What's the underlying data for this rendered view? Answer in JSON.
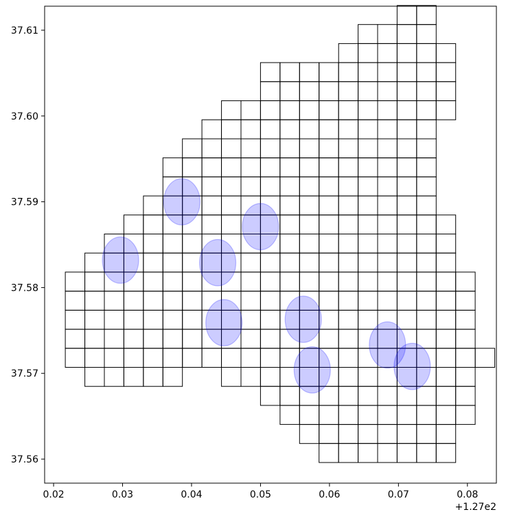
{
  "chart_data": {
    "type": "scatter",
    "title": "",
    "xlabel": "",
    "ylabel": "",
    "x_offset_label": "+1.27e2",
    "xlim": [
      0.0187,
      0.0842
    ],
    "ylim": [
      37.5572,
      37.6128
    ],
    "x_ticks": [
      0.02,
      0.03,
      0.04,
      0.05,
      0.06,
      0.07,
      0.08
    ],
    "x_tick_labels": [
      "0.02",
      "0.03",
      "0.04",
      "0.05",
      "0.06",
      "0.07",
      "0.08"
    ],
    "y_ticks": [
      37.56,
      37.57,
      37.58,
      37.59,
      37.6,
      37.61
    ],
    "y_tick_labels": [
      "37.56",
      "37.57",
      "37.58",
      "37.59",
      "37.60",
      "37.61"
    ],
    "grid": false,
    "grid_cells": {
      "cell_width": 0.00283,
      "cell_height": 0.00222,
      "x0": 0.0217,
      "y0": 37.5596,
      "rows_from_bottom": [
        {
          "row": 0,
          "cols": [
            [
              13,
              19
            ]
          ]
        },
        {
          "row": 1,
          "cols": [
            [
              12,
              19
            ]
          ]
        },
        {
          "row": 2,
          "cols": [
            [
              11,
              20
            ]
          ]
        },
        {
          "row": 3,
          "cols": [
            [
              10,
              20
            ]
          ]
        },
        {
          "row": 4,
          "cols": [
            [
              1,
              5
            ],
            [
              8,
              20
            ]
          ]
        },
        {
          "row": 5,
          "cols": [
            [
              0,
              21
            ]
          ]
        },
        {
          "row": 6,
          "cols": [
            [
              0,
              20
            ]
          ]
        },
        {
          "row": 7,
          "cols": [
            [
              0,
              20
            ]
          ]
        },
        {
          "row": 8,
          "cols": [
            [
              0,
              20
            ]
          ]
        },
        {
          "row": 9,
          "cols": [
            [
              0,
              20
            ]
          ]
        },
        {
          "row": 10,
          "cols": [
            [
              1,
              19
            ]
          ]
        },
        {
          "row": 11,
          "cols": [
            [
              2,
              19
            ]
          ]
        },
        {
          "row": 12,
          "cols": [
            [
              3,
              19
            ]
          ]
        },
        {
          "row": 13,
          "cols": [
            [
              4,
              18
            ]
          ]
        },
        {
          "row": 14,
          "cols": [
            [
              5,
              18
            ]
          ]
        },
        {
          "row": 15,
          "cols": [
            [
              5,
              18
            ]
          ]
        },
        {
          "row": 16,
          "cols": [
            [
              6,
              18
            ]
          ]
        },
        {
          "row": 17,
          "cols": [
            [
              7,
              18
            ]
          ]
        },
        {
          "row": 18,
          "cols": [
            [
              8,
              19
            ]
          ]
        },
        {
          "row": 19,
          "cols": [
            [
              10,
              19
            ]
          ]
        },
        {
          "row": 20,
          "cols": [
            [
              10,
              19
            ]
          ]
        },
        {
          "row": 21,
          "cols": [
            [
              14,
              19
            ]
          ]
        },
        {
          "row": 22,
          "cols": [
            [
              15,
              18
            ]
          ]
        },
        {
          "row": 23,
          "cols": [
            [
              17,
              18
            ]
          ]
        }
      ]
    },
    "circles": {
      "color": "#0000ff",
      "opacity": 0.2,
      "edge_opacity": 0.25,
      "rx": 0.00263,
      "ry": 0.0027,
      "points": [
        {
          "x": 0.0297,
          "y": 37.5832
        },
        {
          "x": 0.0386,
          "y": 37.59
        },
        {
          "x": 0.0438,
          "y": 37.5829
        },
        {
          "x": 0.05,
          "y": 37.5871
        },
        {
          "x": 0.0447,
          "y": 37.5759
        },
        {
          "x": 0.0562,
          "y": 37.5763
        },
        {
          "x": 0.0575,
          "y": 37.5704
        },
        {
          "x": 0.0684,
          "y": 37.5733
        },
        {
          "x": 0.072,
          "y": 37.5708
        }
      ]
    },
    "colors": {
      "grid_line": "#000000",
      "circle_fill": "#0000ff",
      "axes": "#000000"
    }
  }
}
